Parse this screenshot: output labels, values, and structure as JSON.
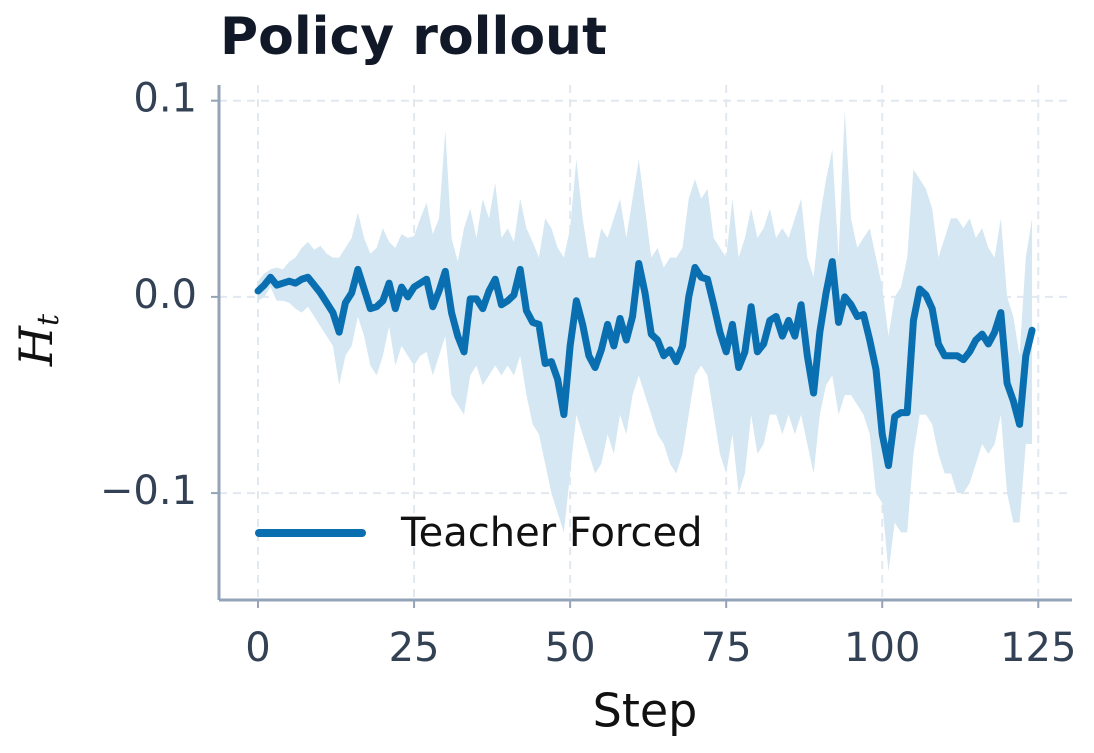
{
  "chart_data": {
    "type": "line",
    "title": "Policy rollout",
    "xlabel": "Step",
    "ylabel": "H",
    "ylabel_sub": "t",
    "x": [
      0,
      1,
      2,
      3,
      4,
      5,
      6,
      7,
      8,
      9,
      10,
      11,
      12,
      13,
      14,
      15,
      16,
      17,
      18,
      19,
      20,
      21,
      22,
      23,
      24,
      25,
      26,
      27,
      28,
      29,
      30,
      31,
      32,
      33,
      34,
      35,
      36,
      37,
      38,
      39,
      40,
      41,
      42,
      43,
      44,
      45,
      46,
      47,
      48,
      49,
      50,
      51,
      52,
      53,
      54,
      55,
      56,
      57,
      58,
      59,
      60,
      61,
      62,
      63,
      64,
      65,
      66,
      67,
      68,
      69,
      70,
      71,
      72,
      73,
      74,
      75,
      76,
      77,
      78,
      79,
      80,
      81,
      82,
      83,
      84,
      85,
      86,
      87,
      88,
      89,
      90,
      91,
      92,
      93,
      94,
      95,
      96,
      97,
      98,
      99,
      100,
      101,
      102,
      103,
      104,
      105,
      106,
      107,
      108,
      109,
      110,
      111,
      112,
      113,
      114,
      115,
      116,
      117,
      118,
      119,
      120,
      121,
      122,
      123,
      124
    ],
    "series": [
      {
        "name": "Teacher Forced",
        "color": "#0a6fb0",
        "band_color": "#d4e7f2",
        "values": [
          0.003,
          0.006,
          0.01,
          0.006,
          0.007,
          0.008,
          0.007,
          0.009,
          0.01,
          0.006,
          0.002,
          -0.003,
          -0.008,
          -0.018,
          -0.003,
          0.002,
          0.014,
          0.004,
          -0.006,
          -0.005,
          -0.002,
          0.007,
          -0.006,
          0.005,
          0.0,
          0.005,
          0.007,
          0.009,
          -0.005,
          0.003,
          0.013,
          -0.008,
          -0.02,
          -0.028,
          -0.001,
          -0.001,
          -0.006,
          0.003,
          0.009,
          -0.004,
          -0.002,
          0.001,
          0.014,
          -0.007,
          -0.013,
          -0.014,
          -0.034,
          -0.033,
          -0.042,
          -0.06,
          -0.025,
          -0.002,
          -0.014,
          -0.03,
          -0.036,
          -0.027,
          -0.014,
          -0.025,
          -0.011,
          -0.022,
          -0.01,
          0.017,
          0.002,
          -0.019,
          -0.022,
          -0.03,
          -0.027,
          -0.033,
          -0.025,
          0.0,
          0.015,
          0.01,
          0.009,
          -0.004,
          -0.018,
          -0.028,
          -0.014,
          -0.036,
          -0.028,
          -0.005,
          -0.028,
          -0.024,
          -0.012,
          -0.01,
          -0.02,
          -0.012,
          -0.02,
          -0.004,
          -0.03,
          -0.049,
          -0.018,
          0.002,
          0.018,
          -0.013,
          0.0,
          -0.004,
          -0.01,
          -0.009,
          -0.022,
          -0.037,
          -0.07,
          -0.086,
          -0.061,
          -0.059,
          -0.059,
          -0.012,
          0.004,
          0.001,
          -0.006,
          -0.024,
          -0.03,
          -0.03,
          -0.03,
          -0.032,
          -0.028,
          -0.022,
          -0.019,
          -0.024,
          -0.018,
          -0.008,
          -0.044,
          -0.053,
          -0.065,
          -0.03,
          -0.017
        ],
        "upper": [
          0.008,
          0.012,
          0.014,
          0.015,
          0.014,
          0.018,
          0.02,
          0.025,
          0.028,
          0.024,
          0.026,
          0.022,
          0.02,
          0.02,
          0.025,
          0.03,
          0.043,
          0.03,
          0.022,
          0.025,
          0.035,
          0.028,
          0.025,
          0.032,
          0.03,
          0.031,
          0.04,
          0.048,
          0.032,
          0.04,
          0.085,
          0.03,
          0.018,
          0.035,
          0.045,
          0.03,
          0.05,
          0.04,
          0.058,
          0.03,
          0.035,
          0.028,
          0.05,
          0.035,
          0.028,
          0.02,
          0.04,
          0.035,
          0.025,
          0.02,
          0.035,
          0.07,
          0.04,
          0.02,
          0.02,
          0.035,
          0.03,
          0.04,
          0.05,
          0.03,
          0.05,
          0.07,
          0.045,
          0.02,
          0.025,
          0.015,
          0.02,
          0.02,
          0.025,
          0.05,
          0.06,
          0.05,
          0.055,
          0.03,
          0.025,
          0.02,
          0.05,
          0.02,
          0.03,
          0.045,
          0.03,
          0.035,
          0.045,
          0.03,
          0.035,
          0.03,
          0.04,
          0.05,
          0.02,
          0.01,
          0.04,
          0.06,
          0.075,
          0.02,
          0.095,
          0.04,
          0.025,
          0.03,
          0.035,
          0.02,
          0.005,
          -0.02,
          0.0,
          0.005,
          0.02,
          0.065,
          0.06,
          0.055,
          0.045,
          0.02,
          0.03,
          0.04,
          0.04,
          0.035,
          0.04,
          0.03,
          0.035,
          0.025,
          0.02,
          0.04,
          0.0,
          -0.01,
          -0.03,
          0.02,
          0.04
        ],
        "lower": [
          -0.002,
          0.0,
          0.005,
          -0.002,
          -0.002,
          -0.003,
          -0.006,
          -0.008,
          -0.005,
          -0.01,
          -0.015,
          -0.02,
          -0.025,
          -0.045,
          -0.03,
          -0.025,
          -0.01,
          -0.02,
          -0.035,
          -0.04,
          -0.03,
          -0.015,
          -0.035,
          -0.025,
          -0.03,
          -0.035,
          -0.03,
          -0.028,
          -0.04,
          -0.03,
          -0.02,
          -0.05,
          -0.055,
          -0.06,
          -0.04,
          -0.035,
          -0.045,
          -0.04,
          -0.035,
          -0.04,
          -0.035,
          -0.04,
          -0.03,
          -0.05,
          -0.065,
          -0.07,
          -0.085,
          -0.1,
          -0.11,
          -0.12,
          -0.09,
          -0.06,
          -0.07,
          -0.08,
          -0.09,
          -0.085,
          -0.07,
          -0.08,
          -0.06,
          -0.07,
          -0.05,
          -0.04,
          -0.05,
          -0.06,
          -0.07,
          -0.075,
          -0.085,
          -0.09,
          -0.08,
          -0.06,
          -0.04,
          -0.035,
          -0.04,
          -0.06,
          -0.08,
          -0.09,
          -0.07,
          -0.1,
          -0.09,
          -0.06,
          -0.08,
          -0.075,
          -0.06,
          -0.06,
          -0.07,
          -0.06,
          -0.07,
          -0.06,
          -0.075,
          -0.09,
          -0.06,
          -0.045,
          -0.04,
          -0.06,
          -0.05,
          -0.05,
          -0.055,
          -0.06,
          -0.07,
          -0.1,
          -0.105,
          -0.14,
          -0.115,
          -0.12,
          -0.12,
          -0.08,
          -0.06,
          -0.06,
          -0.065,
          -0.08,
          -0.09,
          -0.09,
          -0.1,
          -0.1,
          -0.095,
          -0.085,
          -0.075,
          -0.08,
          -0.075,
          -0.06,
          -0.1,
          -0.115,
          -0.115,
          -0.075,
          -0.075
        ]
      }
    ],
    "xlim": [
      -6.25,
      130.4
    ],
    "ylim": [
      -0.1545,
      0.108
    ],
    "xticks": [
      0,
      25,
      50,
      75,
      100,
      125
    ],
    "yticks": [
      0.1,
      {
        "value": 0,
        "label": "0.0"
      },
      {
        "value": -0.1,
        "label": "−0.1"
      }
    ],
    "grid": true,
    "legend": "lower left"
  }
}
